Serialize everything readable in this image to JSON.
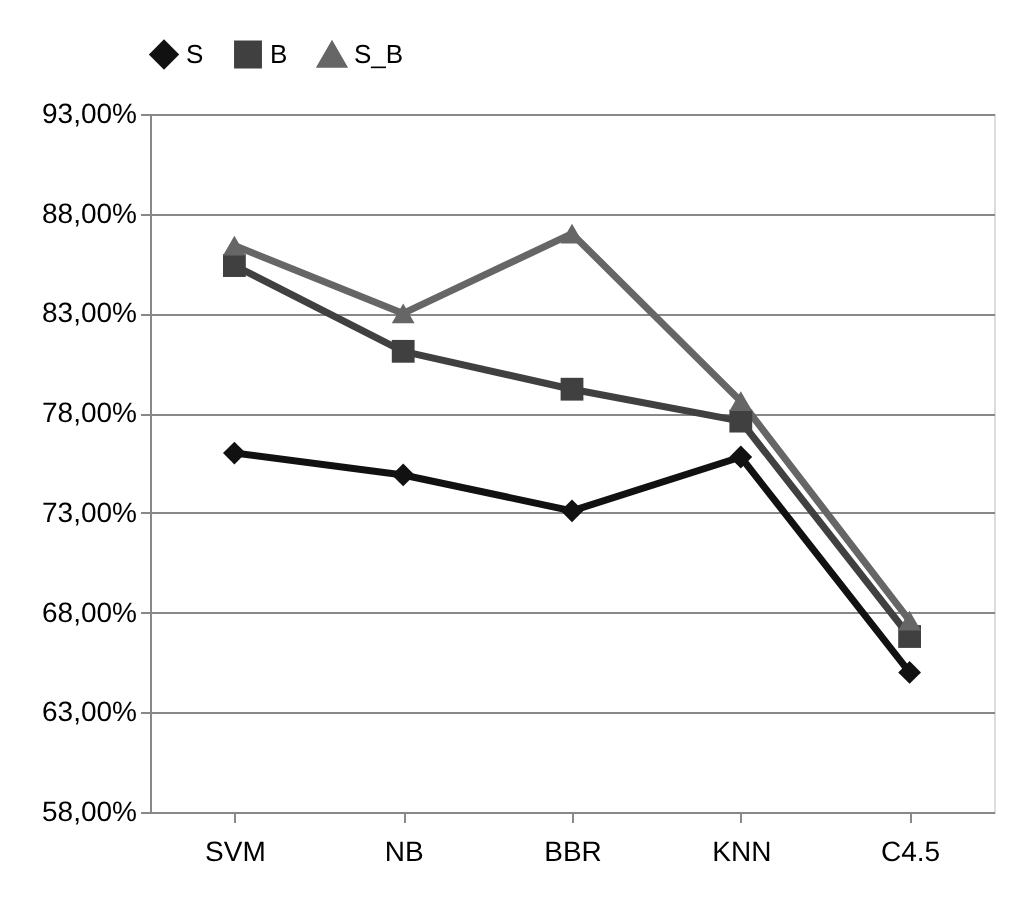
{
  "chart_data": {
    "type": "line",
    "categories": [
      "SVM",
      "NB",
      "BBR",
      "KNN",
      "C4.5"
    ],
    "series": [
      {
        "name": "S",
        "color": "#111111",
        "marker": "diamond",
        "values": [
          76.0,
          74.9,
          73.1,
          75.8,
          65.0
        ]
      },
      {
        "name": "B",
        "color": "#404040",
        "marker": "square",
        "values": [
          85.4,
          81.1,
          79.2,
          77.6,
          66.8
        ]
      },
      {
        "name": "S_B",
        "color": "#666666",
        "marker": "triangle",
        "values": [
          86.4,
          83.0,
          87.0,
          78.6,
          67.6
        ]
      }
    ],
    "ylim": [
      58,
      93
    ],
    "yticks": [
      {
        "value": 58,
        "label": "58,00%"
      },
      {
        "value": 63,
        "label": "63,00%"
      },
      {
        "value": 68,
        "label": "68,00%"
      },
      {
        "value": 73,
        "label": "73,00%"
      },
      {
        "value": 78,
        "label": "78,00%"
      },
      {
        "value": 83,
        "label": "83,00%"
      },
      {
        "value": 88,
        "label": "88,00%"
      },
      {
        "value": 93,
        "label": "93,00%"
      }
    ],
    "grid": "y",
    "legend": "top",
    "line_style": "solid"
  }
}
